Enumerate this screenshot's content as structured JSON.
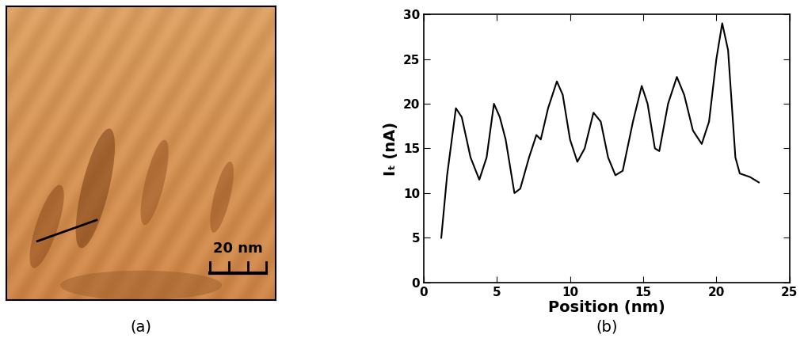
{
  "image": {
    "caption": "(a)",
    "scale_bar_label": "20 nm"
  },
  "chart_data": {
    "type": "line",
    "caption": "(b)",
    "x_label": "Position (nm)",
    "y_label": "Iₜ (nA)",
    "x": [
      1.2,
      1.6,
      2.2,
      2.6,
      3.2,
      3.8,
      4.3,
      4.8,
      5.2,
      5.6,
      6.2,
      6.6,
      7.2,
      7.7,
      8.0,
      8.5,
      9.1,
      9.5,
      10.0,
      10.5,
      11.0,
      11.6,
      12.1,
      12.6,
      13.1,
      13.6,
      14.3,
      14.9,
      15.3,
      15.8,
      16.1,
      16.7,
      17.3,
      17.8,
      18.4,
      19.0,
      19.5,
      20.0,
      20.4,
      20.8,
      21.3,
      21.6,
      22.3,
      22.9
    ],
    "values": [
      5,
      12,
      19.5,
      18.5,
      14,
      11.5,
      14,
      20,
      18.5,
      16,
      10,
      10.5,
      14,
      16.5,
      16,
      19.5,
      22.5,
      21,
      16,
      13.5,
      15,
      19,
      18,
      14,
      12,
      12.5,
      18,
      22,
      20,
      15,
      14.7,
      20,
      23,
      21,
      17,
      15.5,
      18,
      25,
      29,
      26,
      14,
      12.2,
      11.8,
      11.2
    ],
    "color": "#000000",
    "xlim": [
      0,
      25
    ],
    "xticks": [
      0,
      5,
      10,
      15,
      20,
      25
    ],
    "ylim": [
      0,
      30
    ],
    "yticks": [
      0,
      5,
      10,
      15,
      20,
      25,
      30
    ]
  }
}
